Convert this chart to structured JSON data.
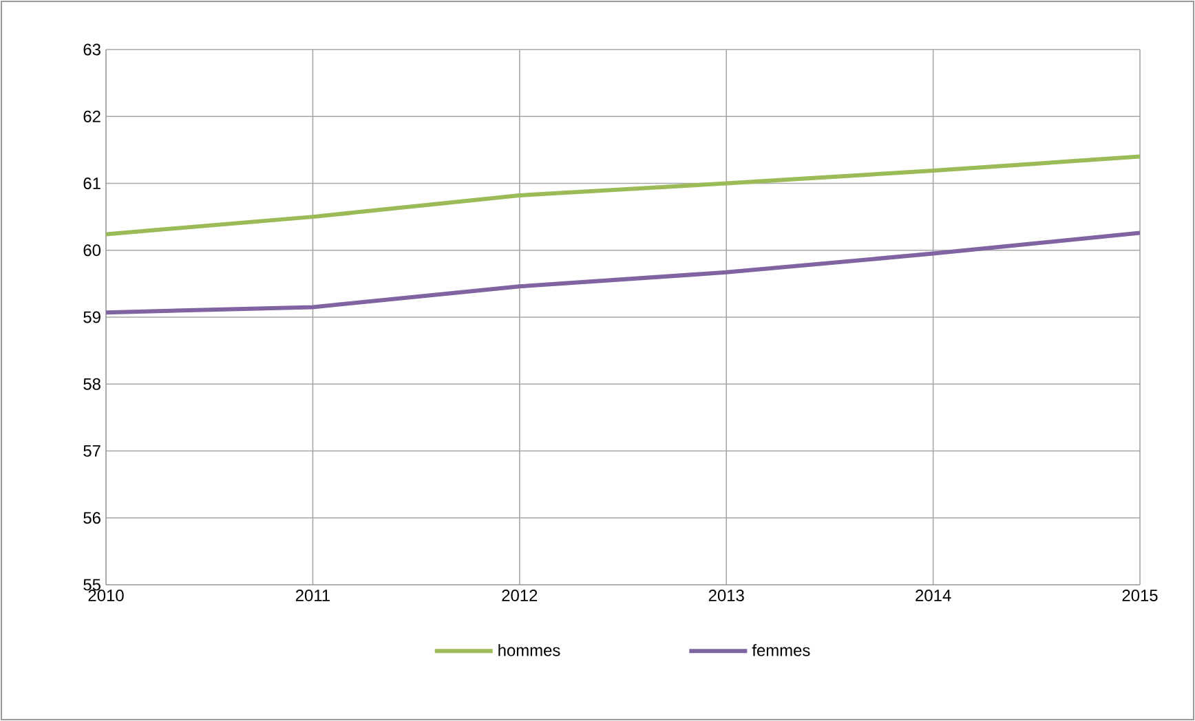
{
  "chart_data": {
    "type": "line",
    "x": [
      2010,
      2011,
      2012,
      2013,
      2014,
      2015
    ],
    "series": [
      {
        "name": "hommes",
        "color": "#9bbb59",
        "values": [
          60.24,
          60.5,
          60.82,
          61.0,
          61.19,
          61.4
        ]
      },
      {
        "name": "femmes",
        "color": "#8064a2",
        "values": [
          59.07,
          59.15,
          59.46,
          59.67,
          59.95,
          60.26
        ]
      }
    ],
    "xlim": [
      2010,
      2015
    ],
    "xticks": [
      2010,
      2011,
      2012,
      2013,
      2014,
      2015
    ],
    "ylim": [
      55,
      63
    ],
    "yticks": [
      55,
      56,
      57,
      58,
      59,
      60,
      61,
      62,
      63
    ],
    "grid": true,
    "legend": "bottom",
    "marker": "none",
    "line_style": "solid"
  }
}
